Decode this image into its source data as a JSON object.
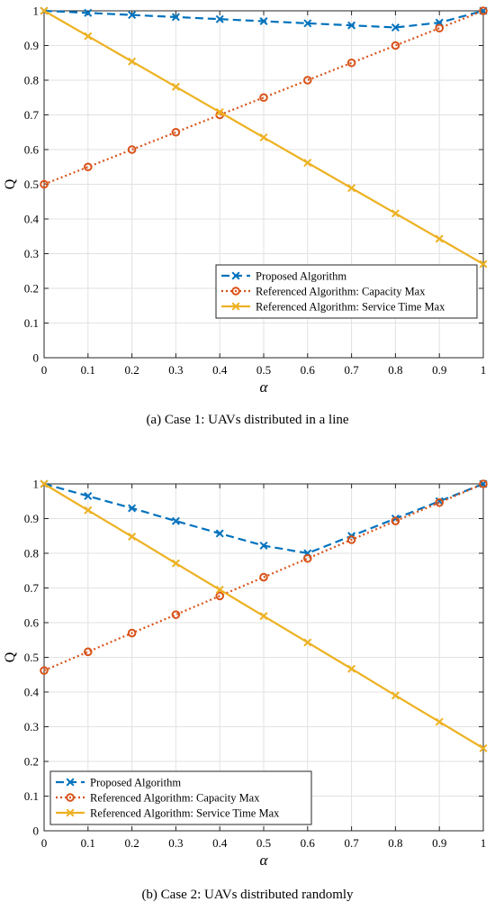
{
  "colors": {
    "proposed": "#0072BD",
    "capacity": "#D95319",
    "service": "#EDB120",
    "grid": "#e2e2e2",
    "axis": "#262626"
  },
  "chart_data": [
    {
      "type": "line",
      "caption": "(a)  Case 1: UAVs distributed in a line",
      "xlabel": "α",
      "ylabel": "Q",
      "xlim": [
        0,
        1
      ],
      "ylim": [
        0,
        1
      ],
      "xticks": [
        "0",
        "0.1",
        "0.2",
        "0.3",
        "0.4",
        "0.5",
        "0.6",
        "0.7",
        "0.8",
        "0.9",
        "1"
      ],
      "yticks": [
        "0",
        "0.1",
        "0.2",
        "0.3",
        "0.4",
        "0.5",
        "0.6",
        "0.7",
        "0.8",
        "0.9",
        "1"
      ],
      "grid": true,
      "legend_position": "bottom-right",
      "x": [
        0,
        0.1,
        0.2,
        0.3,
        0.4,
        0.5,
        0.6,
        0.7,
        0.8,
        0.9,
        1
      ],
      "series": [
        {
          "name": "Proposed Algorithm",
          "style": "dashed",
          "marker": "x",
          "color_key": "proposed",
          "values": [
            1.0,
            0.994,
            0.988,
            0.982,
            0.976,
            0.97,
            0.964,
            0.958,
            0.952,
            0.966,
            1.0
          ]
        },
        {
          "name": "Referenced Algorithm: Capacity Max",
          "style": "dotted",
          "marker": "o",
          "color_key": "capacity",
          "values": [
            0.5,
            0.55,
            0.6,
            0.65,
            0.7,
            0.75,
            0.8,
            0.85,
            0.9,
            0.95,
            1.0
          ]
        },
        {
          "name": "Referenced Algorithm: Service Time Max",
          "style": "solid",
          "marker": "x",
          "color_key": "service",
          "values": [
            1.0,
            0.927,
            0.854,
            0.781,
            0.708,
            0.635,
            0.562,
            0.489,
            0.416,
            0.343,
            0.27
          ]
        }
      ]
    },
    {
      "type": "line",
      "caption": "(b)  Case 2: UAVs distributed randomly",
      "xlabel": "α",
      "ylabel": "Q",
      "xlim": [
        0,
        1
      ],
      "ylim": [
        0,
        1
      ],
      "xticks": [
        "0",
        "0.1",
        "0.2",
        "0.3",
        "0.4",
        "0.5",
        "0.6",
        "0.7",
        "0.8",
        "0.9",
        "1"
      ],
      "yticks": [
        "0",
        "0.1",
        "0.2",
        "0.3",
        "0.4",
        "0.5",
        "0.6",
        "0.7",
        "0.8",
        "0.9",
        "1"
      ],
      "grid": true,
      "legend_position": "bottom-left",
      "x": [
        0,
        0.1,
        0.2,
        0.3,
        0.4,
        0.5,
        0.6,
        0.7,
        0.8,
        0.9,
        1
      ],
      "series": [
        {
          "name": "Proposed Algorithm",
          "style": "dashed",
          "marker": "x",
          "color_key": "proposed",
          "values": [
            1.0,
            0.965,
            0.93,
            0.893,
            0.857,
            0.822,
            0.8,
            0.85,
            0.9,
            0.95,
            1.0
          ]
        },
        {
          "name": "Referenced Algorithm: Capacity Max",
          "style": "dotted",
          "marker": "o",
          "color_key": "capacity",
          "values": [
            0.462,
            0.516,
            0.57,
            0.623,
            0.677,
            0.731,
            0.785,
            0.839,
            0.893,
            0.946,
            1.0
          ]
        },
        {
          "name": "Referenced Algorithm: Service Time Max",
          "style": "solid",
          "marker": "x",
          "color_key": "service",
          "values": [
            1.0,
            0.924,
            0.848,
            0.771,
            0.695,
            0.619,
            0.543,
            0.467,
            0.39,
            0.314,
            0.238
          ]
        }
      ]
    }
  ]
}
